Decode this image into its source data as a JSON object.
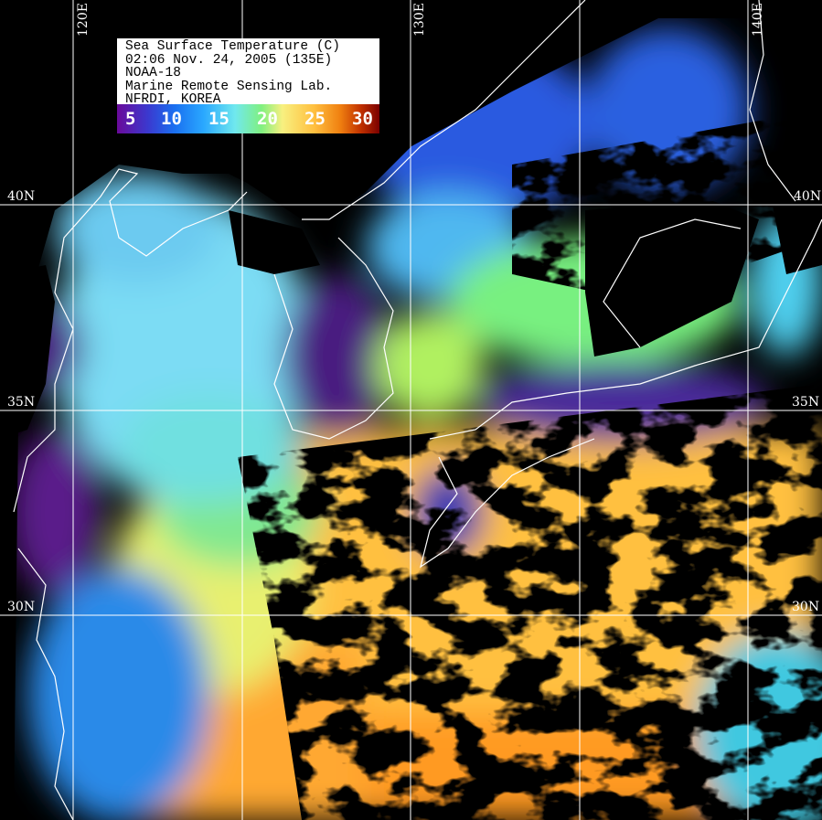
{
  "legend": {
    "lines": [
      "Sea Surface Temperature (C)",
      "02:06 Nov. 24, 2005 (135E)",
      "NOAA-18",
      "Marine Remote Sensing Lab.",
      "NFRDI, KOREA"
    ],
    "colorbar_labels": [
      "5",
      "10",
      "15",
      "20",
      "25",
      "30"
    ],
    "colorbar_colors": [
      "#6a0a9a",
      "#1a70f0",
      "#70e8ee",
      "#f8f080",
      "#f08010",
      "#7a0000"
    ]
  },
  "grid": {
    "longitudes": [
      "120E",
      "130E",
      "140E"
    ],
    "latitudes_left": [
      "40N",
      "35N",
      "30N"
    ],
    "latitudes_right": [
      "40N",
      "35N",
      "30N"
    ]
  },
  "palette": {
    "land_cloud": "#000000",
    "coastline": "#ffffff",
    "gridline": "#ffffff"
  }
}
